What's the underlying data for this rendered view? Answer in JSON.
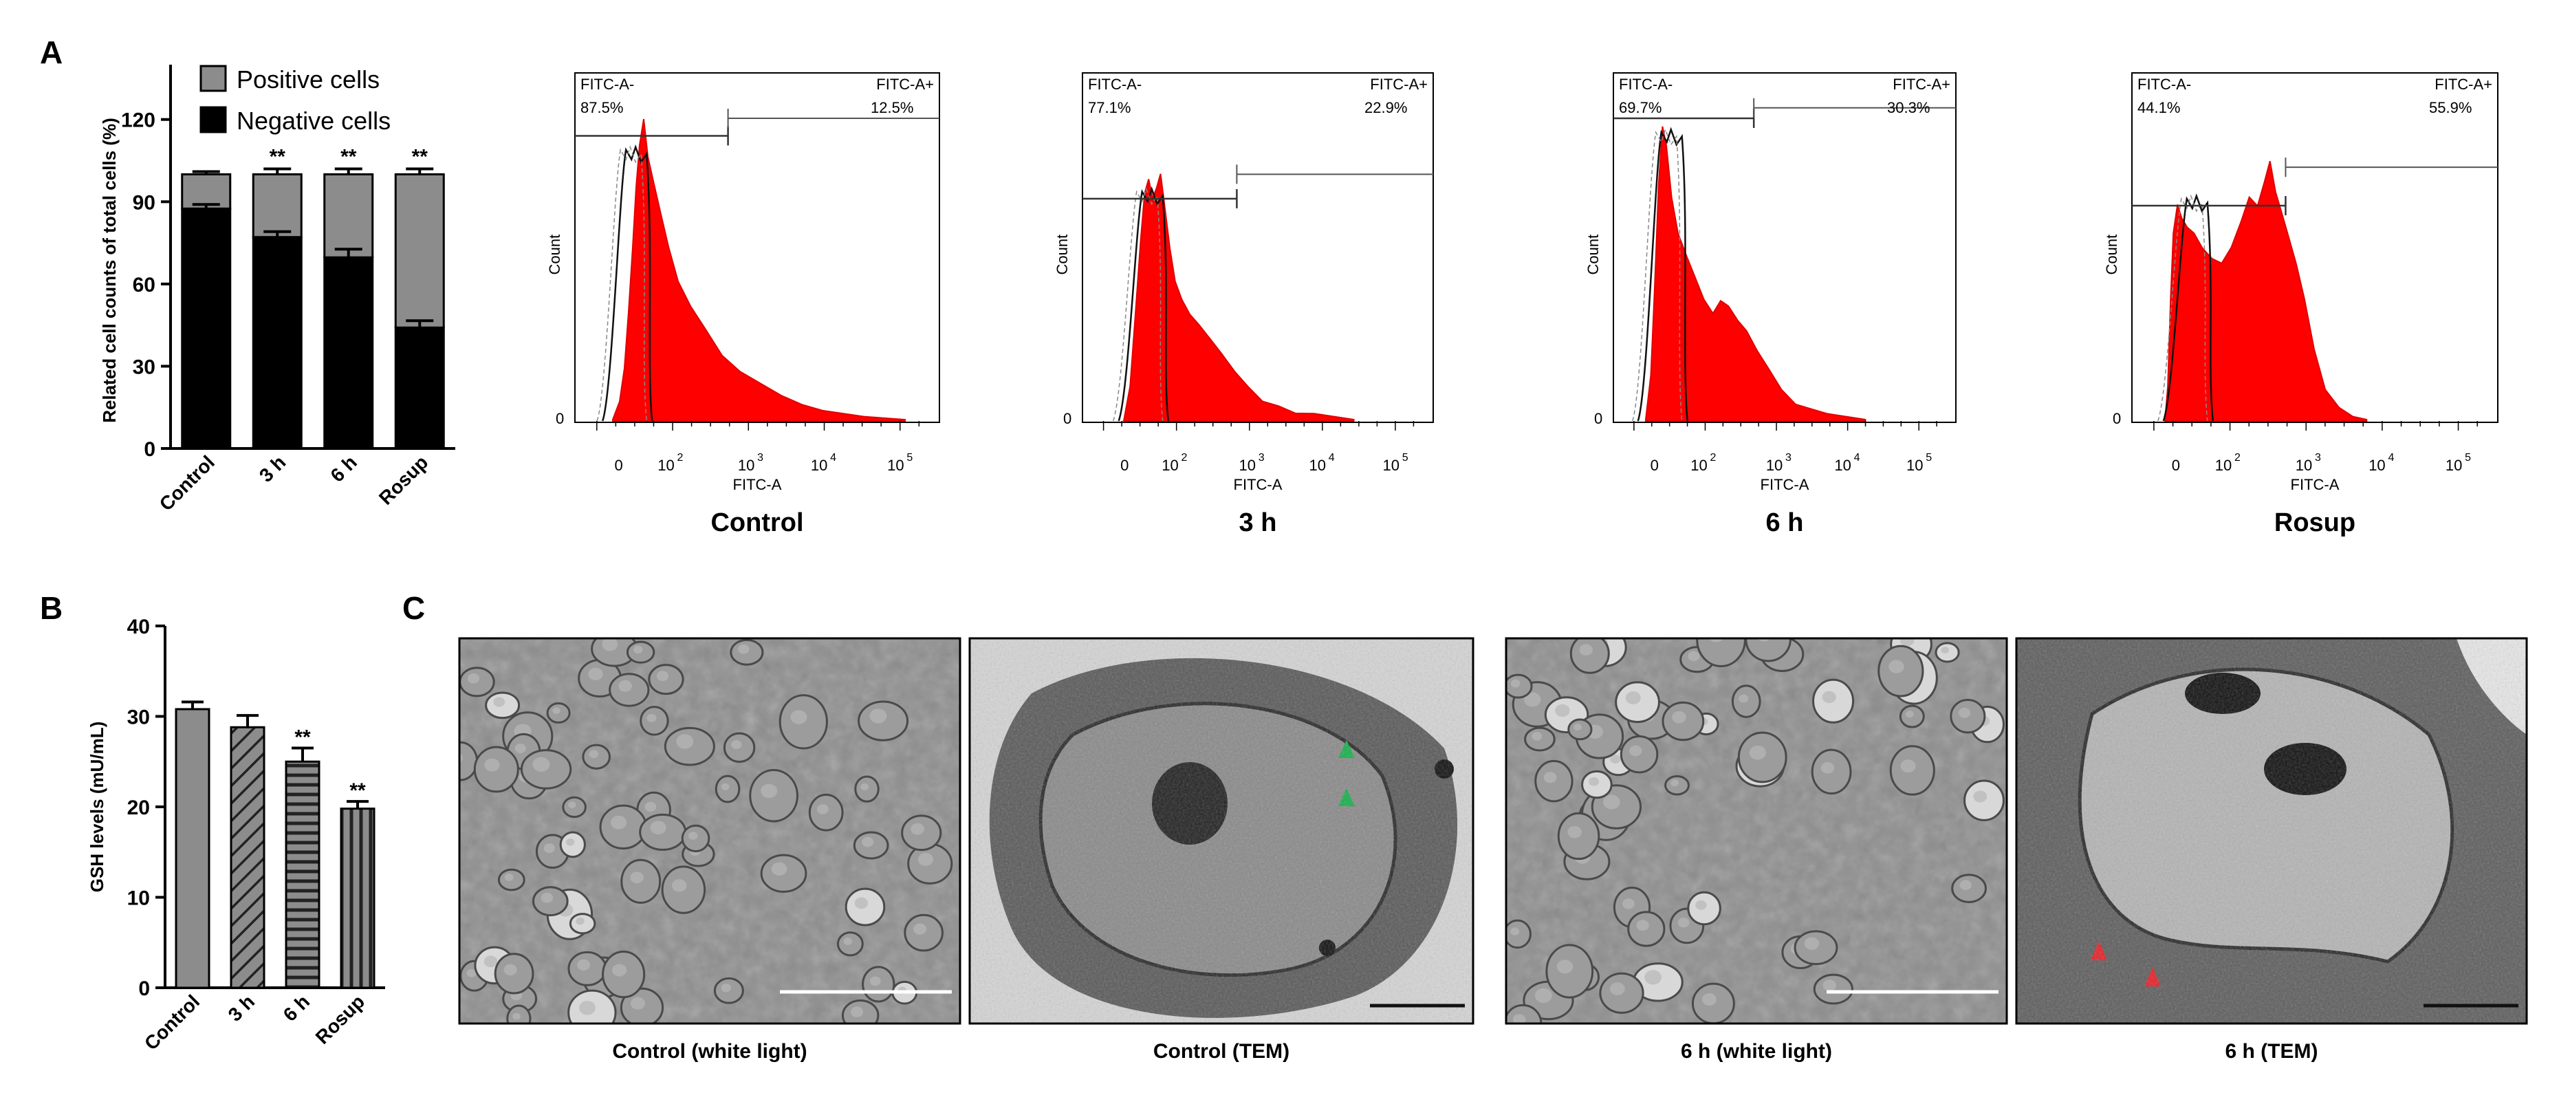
{
  "panels": {
    "A": "A",
    "B": "B",
    "C": "C"
  },
  "colors": {
    "positive": "#8c8c8c",
    "negative": "#000000",
    "histogram_fill": "#ff0000",
    "histogram_edge": "#e00000",
    "green_marker": "#16b04a",
    "red_marker": "#e52028"
  },
  "histogram_labels": {
    "y_label": "Count",
    "x_label": "FITC-A",
    "gate_neg": "FITC-A-",
    "gate_pos": "FITC-A+",
    "x_ticks": [
      "0",
      "10",
      "10",
      "10",
      "10"
    ],
    "x_tick_exp": [
      "",
      "2",
      "3",
      "4",
      "5"
    ],
    "y_zero": "0"
  },
  "photos": [
    {
      "caption": "Control (white light)",
      "kind": "light"
    },
    {
      "caption": "Control (TEM)",
      "kind": "tem"
    },
    {
      "caption": "6 h (white light)",
      "kind": "light"
    },
    {
      "caption": "6 h (TEM)",
      "kind": "tem"
    }
  ],
  "chart_data": [
    {
      "type": "bar",
      "stacked": true,
      "panel": "A",
      "categories": [
        "Control",
        "3 h",
        "6 h",
        "Rosup"
      ],
      "series": [
        {
          "name": "Negative cells",
          "values": [
            87.5,
            77.1,
            69.7,
            44.1
          ],
          "errors": [
            1.5,
            2.0,
            3.0,
            2.5
          ]
        },
        {
          "name": "Positive cells",
          "values": [
            12.5,
            22.9,
            30.3,
            55.9
          ],
          "errors": [
            1.0,
            2.0,
            2.0,
            2.0
          ]
        }
      ],
      "significance": [
        "",
        "**",
        "**",
        "**"
      ],
      "ylabel": "Related cell counts of total cells (%)",
      "yticks": [
        0,
        30,
        60,
        90,
        120
      ],
      "ylim": [
        0,
        140
      ],
      "legend_position": "top"
    },
    {
      "type": "area",
      "panel": "A",
      "title": "Control",
      "x_scale": "biexponential",
      "gate_negative_percent": "87.5%",
      "gate_positive_percent": "12.5%",
      "profile": [
        [
          55,
          0
        ],
        [
          65,
          6
        ],
        [
          72,
          18
        ],
        [
          78,
          36
        ],
        [
          84,
          58
        ],
        [
          89,
          78
        ],
        [
          94,
          92
        ],
        [
          100,
          100
        ],
        [
          106,
          88
        ],
        [
          114,
          80
        ],
        [
          124,
          70
        ],
        [
          136,
          58
        ],
        [
          150,
          46
        ],
        [
          168,
          38
        ],
        [
          190,
          30
        ],
        [
          214,
          22
        ],
        [
          240,
          16
        ],
        [
          270,
          12
        ],
        [
          300,
          8
        ],
        [
          330,
          5
        ],
        [
          360,
          3
        ],
        [
          390,
          2
        ],
        [
          420,
          1
        ],
        [
          450,
          0.5
        ],
        [
          480,
          0
        ]
      ]
    },
    {
      "type": "area",
      "panel": "A",
      "title": "3 h",
      "x_scale": "biexponential",
      "gate_negative_percent": "77.1%",
      "gate_positive_percent": "22.9%",
      "profile": [
        [
          62,
          0
        ],
        [
          72,
          12
        ],
        [
          80,
          35
        ],
        [
          88,
          60
        ],
        [
          94,
          76
        ],
        [
          100,
          80
        ],
        [
          106,
          74
        ],
        [
          112,
          78
        ],
        [
          118,
          82
        ],
        [
          124,
          72
        ],
        [
          132,
          58
        ],
        [
          140,
          46
        ],
        [
          150,
          40
        ],
        [
          162,
          36
        ],
        [
          176,
          32
        ],
        [
          192,
          28
        ],
        [
          210,
          22
        ],
        [
          230,
          16
        ],
        [
          250,
          11
        ],
        [
          272,
          7
        ],
        [
          296,
          5
        ],
        [
          322,
          3
        ],
        [
          350,
          2
        ],
        [
          380,
          1
        ],
        [
          410,
          0
        ]
      ]
    },
    {
      "type": "area",
      "panel": "A",
      "title": "6 h",
      "x_scale": "biexponential",
      "gate_negative_percent": "69.7%",
      "gate_positive_percent": "30.3%",
      "profile": [
        [
          50,
          0
        ],
        [
          58,
          15
        ],
        [
          64,
          45
        ],
        [
          70,
          78
        ],
        [
          76,
          98
        ],
        [
          82,
          92
        ],
        [
          90,
          74
        ],
        [
          100,
          62
        ],
        [
          112,
          56
        ],
        [
          126,
          48
        ],
        [
          140,
          40
        ],
        [
          154,
          36
        ],
        [
          166,
          40
        ],
        [
          178,
          38
        ],
        [
          192,
          34
        ],
        [
          206,
          30
        ],
        [
          222,
          24
        ],
        [
          240,
          17
        ],
        [
          260,
          10
        ],
        [
          282,
          6
        ],
        [
          306,
          4
        ],
        [
          330,
          2
        ],
        [
          360,
          1
        ],
        [
          390,
          0
        ]
      ]
    },
    {
      "type": "area",
      "panel": "A",
      "title": "Rosup",
      "x_scale": "biexponential",
      "gate_negative_percent": "44.1%",
      "gate_positive_percent": "55.9%",
      "profile": [
        [
          48,
          0
        ],
        [
          52,
          12
        ],
        [
          56,
          40
        ],
        [
          60,
          62
        ],
        [
          66,
          72
        ],
        [
          72,
          68
        ],
        [
          80,
          64
        ],
        [
          90,
          62
        ],
        [
          102,
          58
        ],
        [
          116,
          54
        ],
        [
          130,
          52
        ],
        [
          144,
          58
        ],
        [
          158,
          66
        ],
        [
          170,
          74
        ],
        [
          182,
          72
        ],
        [
          192,
          80
        ],
        [
          200,
          86
        ],
        [
          208,
          76
        ],
        [
          216,
          70
        ],
        [
          226,
          62
        ],
        [
          238,
          52
        ],
        [
          250,
          40
        ],
        [
          264,
          24
        ],
        [
          280,
          10
        ],
        [
          300,
          4
        ],
        [
          320,
          1
        ],
        [
          340,
          0
        ]
      ]
    },
    {
      "type": "bar",
      "panel": "B",
      "categories": [
        "Control",
        "3 h",
        "6 h",
        "Rosup"
      ],
      "values": [
        30.8,
        28.8,
        25.0,
        19.8
      ],
      "errors": [
        0.8,
        1.3,
        1.5,
        0.8
      ],
      "patterns": [
        "solid",
        "diagonal",
        "horizontal",
        "vertical"
      ],
      "significance": [
        "",
        "",
        "**",
        "**"
      ],
      "ylabel": "GSH levels (mU/mL)",
      "yticks": [
        0,
        10,
        20,
        30,
        40
      ],
      "ylim": [
        0,
        40
      ]
    }
  ]
}
